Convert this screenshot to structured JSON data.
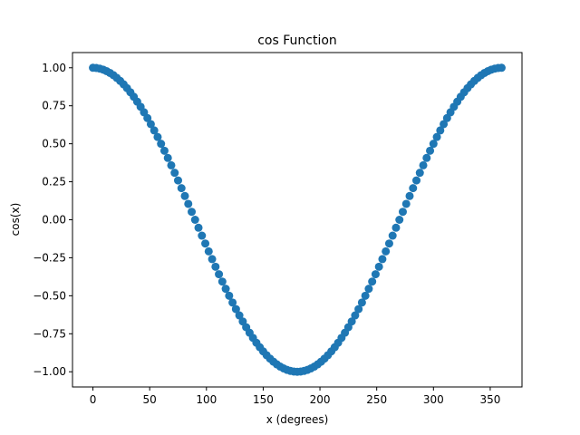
{
  "chart_data": {
    "type": "scatter",
    "title": "cos Function",
    "xlabel": "x (degrees)",
    "ylabel": "cos(x)",
    "xlim": [
      -18,
      378
    ],
    "ylim": [
      -1.1,
      1.1
    ],
    "x_ticks": [
      0,
      50,
      100,
      150,
      200,
      250,
      300,
      350
    ],
    "x_tick_labels": [
      "0",
      "50",
      "100",
      "150",
      "200",
      "250",
      "300",
      "350"
    ],
    "y_ticks": [
      -1.0,
      -0.75,
      -0.5,
      -0.25,
      0.0,
      0.25,
      0.5,
      0.75,
      1.0
    ],
    "y_tick_labels": [
      "−1.00",
      "−0.75",
      "−0.50",
      "−0.25",
      "0.00",
      "0.25",
      "0.50",
      "0.75",
      "1.00"
    ],
    "grid": false,
    "marker_color": "#1f77b4",
    "series": [
      {
        "function": "cos",
        "x": [
          0,
          3,
          6,
          9,
          12,
          15,
          18,
          21,
          24,
          27,
          30,
          33,
          36,
          39,
          42,
          45,
          48,
          51,
          54,
          57,
          60,
          63,
          66,
          69,
          72,
          75,
          78,
          81,
          84,
          87,
          90,
          93,
          96,
          99,
          102,
          105,
          108,
          111,
          114,
          117,
          120,
          123,
          126,
          129,
          132,
          135,
          138,
          141,
          144,
          147,
          150,
          153,
          156,
          159,
          162,
          165,
          168,
          171,
          174,
          177,
          180,
          183,
          186,
          189,
          192,
          195,
          198,
          201,
          204,
          207,
          210,
          213,
          216,
          219,
          222,
          225,
          228,
          231,
          234,
          237,
          240,
          243,
          246,
          249,
          252,
          255,
          258,
          261,
          264,
          267,
          270,
          273,
          276,
          279,
          282,
          285,
          288,
          291,
          294,
          297,
          300,
          303,
          306,
          309,
          312,
          315,
          318,
          321,
          324,
          327,
          330,
          333,
          336,
          339,
          342,
          345,
          348,
          351,
          354,
          357,
          360
        ],
        "y": [
          1.0,
          0.9986,
          0.9945,
          0.9877,
          0.9781,
          0.9659,
          0.9511,
          0.9336,
          0.9135,
          0.891,
          0.866,
          0.8387,
          0.809,
          0.7771,
          0.7431,
          0.7071,
          0.6691,
          0.6293,
          0.5878,
          0.5446,
          0.5,
          0.454,
          0.4067,
          0.3584,
          0.309,
          0.2588,
          0.2079,
          0.1564,
          0.1045,
          0.0523,
          0.0,
          -0.0523,
          -0.1045,
          -0.1564,
          -0.2079,
          -0.2588,
          -0.309,
          -0.3584,
          -0.4067,
          -0.454,
          -0.5,
          -0.5446,
          -0.5878,
          -0.6293,
          -0.6691,
          -0.7071,
          -0.7431,
          -0.7771,
          -0.809,
          -0.8387,
          -0.866,
          -0.891,
          -0.9135,
          -0.9336,
          -0.9511,
          -0.9659,
          -0.9781,
          -0.9877,
          -0.9945,
          -0.9986,
          -1.0,
          -0.9986,
          -0.9945,
          -0.9877,
          -0.9781,
          -0.9659,
          -0.9511,
          -0.9336,
          -0.9135,
          -0.891,
          -0.866,
          -0.8387,
          -0.809,
          -0.7771,
          -0.7431,
          -0.7071,
          -0.6691,
          -0.6293,
          -0.5878,
          -0.5446,
          -0.5,
          -0.454,
          -0.4067,
          -0.3584,
          -0.309,
          -0.2588,
          -0.2079,
          -0.1564,
          -0.1045,
          -0.0523,
          0.0,
          0.0523,
          0.1045,
          0.1564,
          0.2079,
          0.2588,
          0.309,
          0.3584,
          0.4067,
          0.454,
          0.5,
          0.5446,
          0.5878,
          0.6293,
          0.6691,
          0.7071,
          0.7431,
          0.7771,
          0.809,
          0.8387,
          0.866,
          0.891,
          0.9135,
          0.9336,
          0.9511,
          0.9659,
          0.9781,
          0.9877,
          0.9945,
          0.9986,
          1.0
        ]
      }
    ]
  }
}
